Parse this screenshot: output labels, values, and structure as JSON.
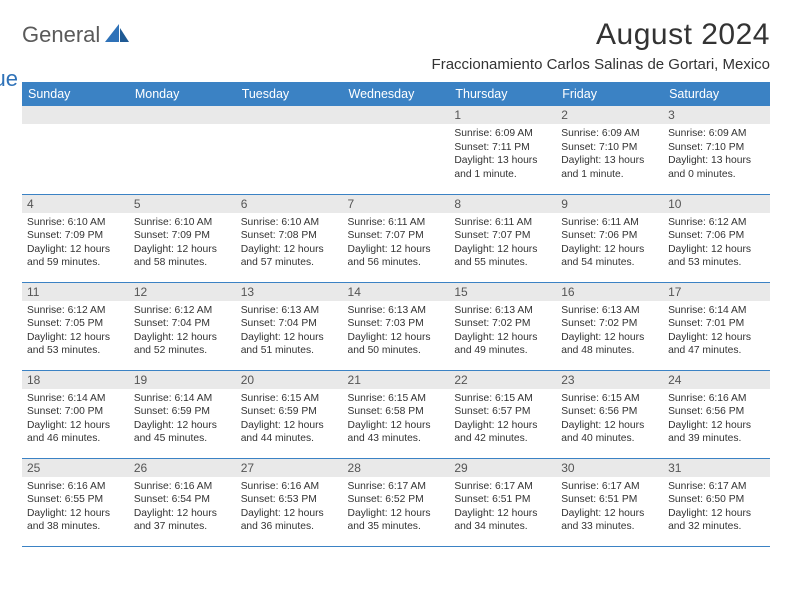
{
  "logo": {
    "text1": "General",
    "text2": "Blue"
  },
  "title": "August 2024",
  "subtitle": "Fraccionamiento Carlos Salinas de Gortari, Mexico",
  "colors": {
    "header_bg": "#3b82c4",
    "header_text": "#ffffff",
    "daynum_bg": "#e9e9e9",
    "row_border": "#3b82c4",
    "body_text": "#333333",
    "logo_gray": "#5a5a5a",
    "logo_blue": "#2f72b8"
  },
  "typography": {
    "title_fontsize": 30,
    "subtitle_fontsize": 15,
    "dayheader_fontsize": 12.5,
    "daynum_fontsize": 12,
    "body_fontsize": 10.3
  },
  "day_headers": [
    "Sunday",
    "Monday",
    "Tuesday",
    "Wednesday",
    "Thursday",
    "Friday",
    "Saturday"
  ],
  "weeks": [
    [
      {
        "n": "",
        "lines": []
      },
      {
        "n": "",
        "lines": []
      },
      {
        "n": "",
        "lines": []
      },
      {
        "n": "",
        "lines": []
      },
      {
        "n": "1",
        "lines": [
          "Sunrise: 6:09 AM",
          "Sunset: 7:11 PM",
          "Daylight: 13 hours and 1 minute."
        ]
      },
      {
        "n": "2",
        "lines": [
          "Sunrise: 6:09 AM",
          "Sunset: 7:10 PM",
          "Daylight: 13 hours and 1 minute."
        ]
      },
      {
        "n": "3",
        "lines": [
          "Sunrise: 6:09 AM",
          "Sunset: 7:10 PM",
          "Daylight: 13 hours and 0 minutes."
        ]
      }
    ],
    [
      {
        "n": "4",
        "lines": [
          "Sunrise: 6:10 AM",
          "Sunset: 7:09 PM",
          "Daylight: 12 hours and 59 minutes."
        ]
      },
      {
        "n": "5",
        "lines": [
          "Sunrise: 6:10 AM",
          "Sunset: 7:09 PM",
          "Daylight: 12 hours and 58 minutes."
        ]
      },
      {
        "n": "6",
        "lines": [
          "Sunrise: 6:10 AM",
          "Sunset: 7:08 PM",
          "Daylight: 12 hours and 57 minutes."
        ]
      },
      {
        "n": "7",
        "lines": [
          "Sunrise: 6:11 AM",
          "Sunset: 7:07 PM",
          "Daylight: 12 hours and 56 minutes."
        ]
      },
      {
        "n": "8",
        "lines": [
          "Sunrise: 6:11 AM",
          "Sunset: 7:07 PM",
          "Daylight: 12 hours and 55 minutes."
        ]
      },
      {
        "n": "9",
        "lines": [
          "Sunrise: 6:11 AM",
          "Sunset: 7:06 PM",
          "Daylight: 12 hours and 54 minutes."
        ]
      },
      {
        "n": "10",
        "lines": [
          "Sunrise: 6:12 AM",
          "Sunset: 7:06 PM",
          "Daylight: 12 hours and 53 minutes."
        ]
      }
    ],
    [
      {
        "n": "11",
        "lines": [
          "Sunrise: 6:12 AM",
          "Sunset: 7:05 PM",
          "Daylight: 12 hours and 53 minutes."
        ]
      },
      {
        "n": "12",
        "lines": [
          "Sunrise: 6:12 AM",
          "Sunset: 7:04 PM",
          "Daylight: 12 hours and 52 minutes."
        ]
      },
      {
        "n": "13",
        "lines": [
          "Sunrise: 6:13 AM",
          "Sunset: 7:04 PM",
          "Daylight: 12 hours and 51 minutes."
        ]
      },
      {
        "n": "14",
        "lines": [
          "Sunrise: 6:13 AM",
          "Sunset: 7:03 PM",
          "Daylight: 12 hours and 50 minutes."
        ]
      },
      {
        "n": "15",
        "lines": [
          "Sunrise: 6:13 AM",
          "Sunset: 7:02 PM",
          "Daylight: 12 hours and 49 minutes."
        ]
      },
      {
        "n": "16",
        "lines": [
          "Sunrise: 6:13 AM",
          "Sunset: 7:02 PM",
          "Daylight: 12 hours and 48 minutes."
        ]
      },
      {
        "n": "17",
        "lines": [
          "Sunrise: 6:14 AM",
          "Sunset: 7:01 PM",
          "Daylight: 12 hours and 47 minutes."
        ]
      }
    ],
    [
      {
        "n": "18",
        "lines": [
          "Sunrise: 6:14 AM",
          "Sunset: 7:00 PM",
          "Daylight: 12 hours and 46 minutes."
        ]
      },
      {
        "n": "19",
        "lines": [
          "Sunrise: 6:14 AM",
          "Sunset: 6:59 PM",
          "Daylight: 12 hours and 45 minutes."
        ]
      },
      {
        "n": "20",
        "lines": [
          "Sunrise: 6:15 AM",
          "Sunset: 6:59 PM",
          "Daylight: 12 hours and 44 minutes."
        ]
      },
      {
        "n": "21",
        "lines": [
          "Sunrise: 6:15 AM",
          "Sunset: 6:58 PM",
          "Daylight: 12 hours and 43 minutes."
        ]
      },
      {
        "n": "22",
        "lines": [
          "Sunrise: 6:15 AM",
          "Sunset: 6:57 PM",
          "Daylight: 12 hours and 42 minutes."
        ]
      },
      {
        "n": "23",
        "lines": [
          "Sunrise: 6:15 AM",
          "Sunset: 6:56 PM",
          "Daylight: 12 hours and 40 minutes."
        ]
      },
      {
        "n": "24",
        "lines": [
          "Sunrise: 6:16 AM",
          "Sunset: 6:56 PM",
          "Daylight: 12 hours and 39 minutes."
        ]
      }
    ],
    [
      {
        "n": "25",
        "lines": [
          "Sunrise: 6:16 AM",
          "Sunset: 6:55 PM",
          "Daylight: 12 hours and 38 minutes."
        ]
      },
      {
        "n": "26",
        "lines": [
          "Sunrise: 6:16 AM",
          "Sunset: 6:54 PM",
          "Daylight: 12 hours and 37 minutes."
        ]
      },
      {
        "n": "27",
        "lines": [
          "Sunrise: 6:16 AM",
          "Sunset: 6:53 PM",
          "Daylight: 12 hours and 36 minutes."
        ]
      },
      {
        "n": "28",
        "lines": [
          "Sunrise: 6:17 AM",
          "Sunset: 6:52 PM",
          "Daylight: 12 hours and 35 minutes."
        ]
      },
      {
        "n": "29",
        "lines": [
          "Sunrise: 6:17 AM",
          "Sunset: 6:51 PM",
          "Daylight: 12 hours and 34 minutes."
        ]
      },
      {
        "n": "30",
        "lines": [
          "Sunrise: 6:17 AM",
          "Sunset: 6:51 PM",
          "Daylight: 12 hours and 33 minutes."
        ]
      },
      {
        "n": "31",
        "lines": [
          "Sunrise: 6:17 AM",
          "Sunset: 6:50 PM",
          "Daylight: 12 hours and 32 minutes."
        ]
      }
    ]
  ]
}
